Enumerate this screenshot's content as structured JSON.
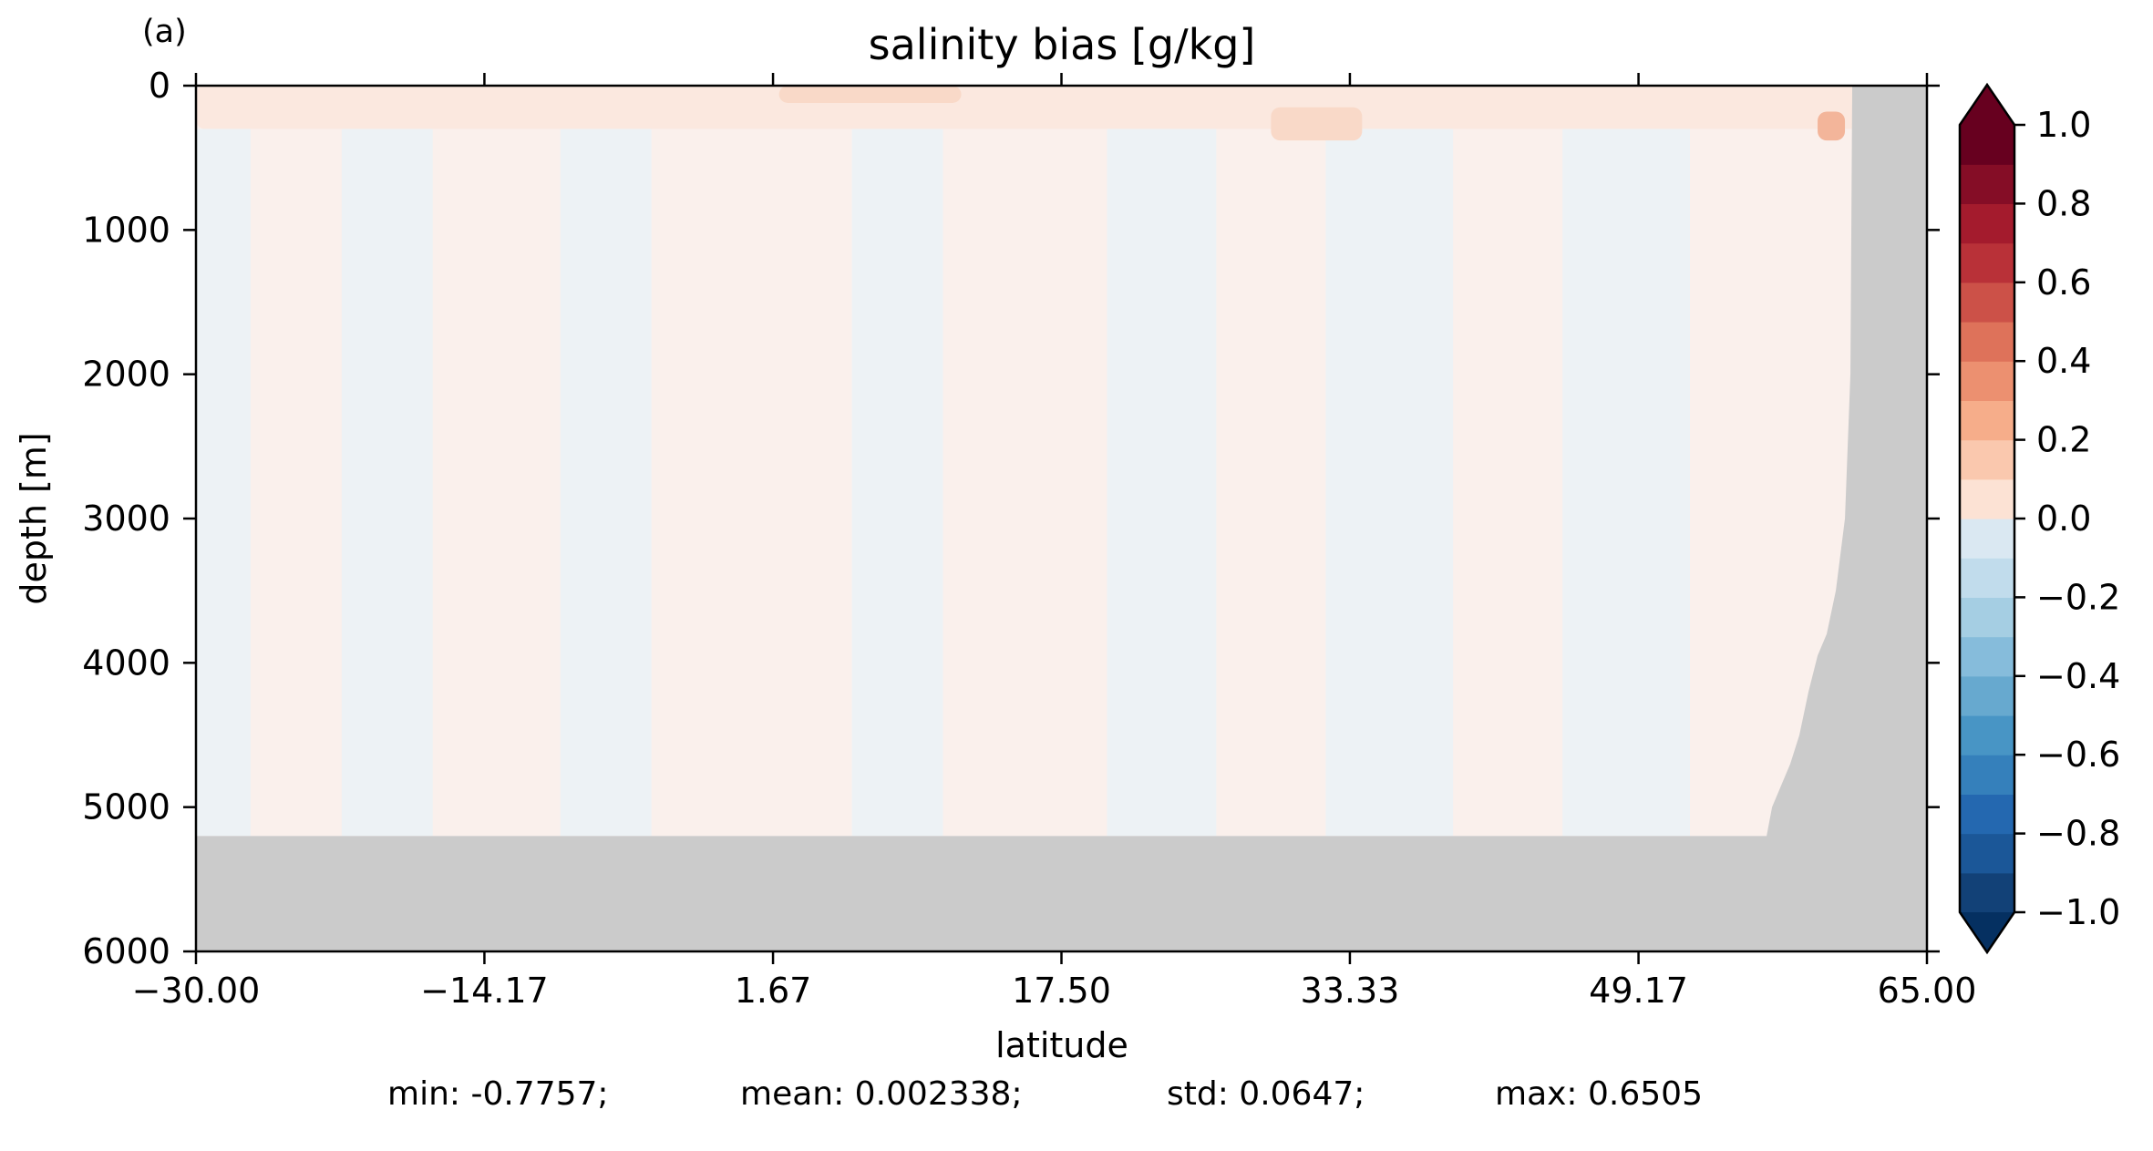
{
  "panel_label": "(a)",
  "chart_data": {
    "type": "heatmap",
    "title": "salinity bias [g/kg]",
    "xlabel": "latitude",
    "ylabel": "depth [m]",
    "xlim": [
      -30.0,
      65.0
    ],
    "ylim": [
      6000,
      0
    ],
    "y_inverted": true,
    "x_ticks": [
      "−30.00",
      "−14.17",
      "1.67",
      "17.50",
      "33.33",
      "49.17",
      "65.00"
    ],
    "x_tick_values": [
      -30.0,
      -14.17,
      1.67,
      17.5,
      33.33,
      49.17,
      65.0
    ],
    "y_ticks": [
      "0",
      "1000",
      "2000",
      "3000",
      "4000",
      "5000",
      "6000"
    ],
    "y_tick_values": [
      0,
      1000,
      2000,
      3000,
      4000,
      5000,
      6000
    ],
    "grid": false,
    "colorbar": {
      "range": [
        -1.0,
        1.0
      ],
      "extend": "both",
      "levels": 20,
      "ticks": [
        "1.0",
        "0.8",
        "0.6",
        "0.4",
        "0.2",
        "0.0",
        "−0.2",
        "−0.4",
        "−0.6",
        "−0.8",
        "−1.0"
      ],
      "tick_values": [
        1.0,
        0.8,
        0.6,
        0.4,
        0.2,
        0.0,
        -0.2,
        -0.4,
        -0.6,
        -0.8,
        -1.0
      ],
      "colors": [
        "#124177",
        "#1b5798",
        "#2468b0",
        "#3580bb",
        "#4895c5",
        "#67a9cf",
        "#86bcdb",
        "#a5cee3",
        "#c1dcec",
        "#dae8f2",
        "#f2f2f2",
        "#fce2d4",
        "#fac8ae",
        "#f6ad8a",
        "#ec9070",
        "#de725a",
        "#cc5148",
        "#b93138",
        "#a41b2d",
        "#850d26",
        "#67001f"
      ],
      "over_color": "#67001f",
      "under_color": "#053061"
    },
    "land_color": "#cbcbcb",
    "bathymetry": {
      "note": "masked region (gray) below sea floor",
      "points": [
        [
          -30.0,
          5200
        ],
        [
          56.2,
          5200
        ],
        [
          56.5,
          5000
        ],
        [
          57.0,
          4850
        ],
        [
          57.5,
          4700
        ],
        [
          58.0,
          4500
        ],
        [
          58.5,
          4200
        ],
        [
          59.0,
          3950
        ],
        [
          59.5,
          3800
        ],
        [
          60.0,
          3500
        ],
        [
          60.5,
          3000
        ],
        [
          60.8,
          2000
        ],
        [
          60.9,
          0
        ]
      ]
    },
    "field_bands": {
      "note": "approximate dominant sign of bias by latitude band (positive = salty, negative = fresh)",
      "bands": [
        {
          "x0": -30.0,
          "x1": -27.0,
          "depth0": 300,
          "depth1": 5200,
          "value": -0.04
        },
        {
          "x0": -27.0,
          "x1": -22.0,
          "depth0": 300,
          "depth1": 5200,
          "value": 0.04
        },
        {
          "x0": -22.0,
          "x1": -17.0,
          "depth0": 300,
          "depth1": 5200,
          "value": -0.04
        },
        {
          "x0": -17.0,
          "x1": -10.0,
          "depth0": 300,
          "depth1": 5200,
          "value": 0.04
        },
        {
          "x0": -10.0,
          "x1": -5.0,
          "depth0": 300,
          "depth1": 5200,
          "value": -0.04
        },
        {
          "x0": -5.0,
          "x1": 6.0,
          "depth0": 300,
          "depth1": 5200,
          "value": 0.04
        },
        {
          "x0": 6.0,
          "x1": 11.0,
          "depth0": 300,
          "depth1": 5200,
          "value": -0.04
        },
        {
          "x0": 11.0,
          "x1": 20.0,
          "depth0": 300,
          "depth1": 5200,
          "value": 0.04
        },
        {
          "x0": 20.0,
          "x1": 26.0,
          "depth0": 300,
          "depth1": 5200,
          "value": -0.04
        },
        {
          "x0": 26.0,
          "x1": 32.0,
          "depth0": 300,
          "depth1": 5200,
          "value": 0.04
        },
        {
          "x0": 32.0,
          "x1": 39.0,
          "depth0": 300,
          "depth1": 5200,
          "value": -0.04
        },
        {
          "x0": 39.0,
          "x1": 45.0,
          "depth0": 300,
          "depth1": 5200,
          "value": 0.04
        },
        {
          "x0": 45.0,
          "x1": 52.0,
          "depth0": 300,
          "depth1": 5200,
          "value": -0.04
        },
        {
          "x0": 52.0,
          "x1": 61.0,
          "depth0": 300,
          "depth1": 5200,
          "value": 0.04
        }
      ],
      "surface_features": [
        {
          "x0": -30.0,
          "x1": 65.0,
          "depth0": 0,
          "depth1": 300,
          "value": 0.05
        },
        {
          "x0": 2.0,
          "x1": 12.0,
          "depth0": 0,
          "depth1": 120,
          "value": 0.15
        },
        {
          "x0": 29.0,
          "x1": 34.0,
          "depth0": 150,
          "depth1": 380,
          "value": 0.15
        },
        {
          "x0": 59.0,
          "x1": 60.5,
          "depth0": 180,
          "depth1": 380,
          "value": 0.45
        }
      ]
    }
  },
  "stats": {
    "min": "min: -0.7757;",
    "mean": "mean: 0.002338;",
    "std": "std: 0.0647;",
    "max": "max: 0.6505"
  }
}
